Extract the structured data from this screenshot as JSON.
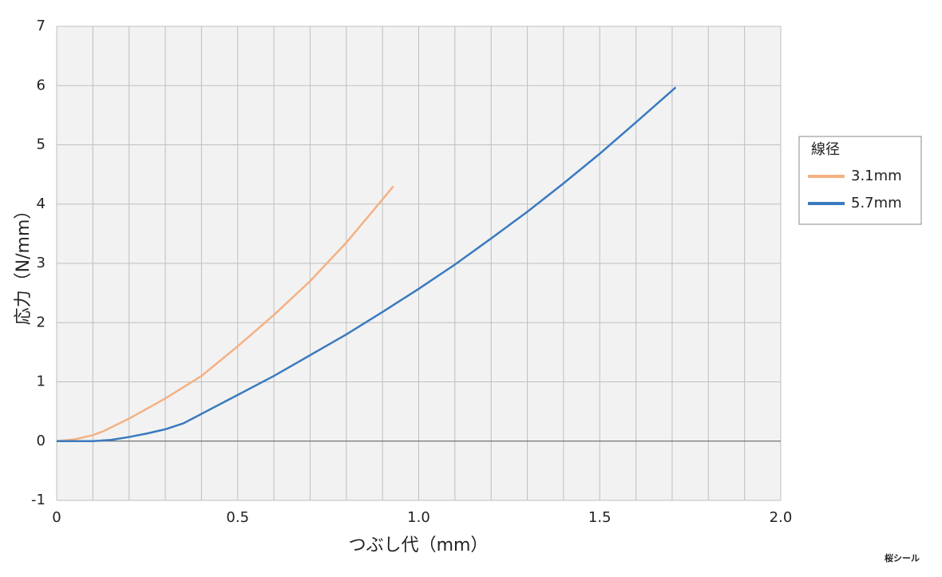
{
  "chart_data": {
    "type": "line",
    "xlabel": "つぶし代（mm）",
    "ylabel": "応力（N/mm）",
    "legend_title": "線径",
    "legend": "right",
    "grid": true,
    "xlim": [
      0,
      2.0
    ],
    "ylim": [
      -1,
      7
    ],
    "xticks": [
      0,
      0.5,
      {
        "value": 1.0,
        "label": "1.0"
      },
      1.5,
      {
        "value": 2.0,
        "label": "2.0"
      }
    ],
    "xminor": [
      0.1,
      0.2,
      0.3,
      0.4,
      0.6,
      0.7,
      0.8,
      0.9,
      1.1,
      1.2,
      1.3,
      1.4,
      1.6,
      1.7,
      1.8,
      1.9
    ],
    "yticks": [
      -1,
      0,
      1,
      2,
      3,
      4,
      5,
      6,
      7
    ],
    "series": [
      {
        "name": "3.1mm",
        "color": "#f4b183",
        "x": [
          0,
          0.05,
          0.1,
          0.13,
          0.2,
          0.3,
          0.4,
          0.5,
          0.6,
          0.7,
          0.8,
          0.9,
          0.93
        ],
        "values": [
          0,
          0.03,
          0.1,
          0.17,
          0.38,
          0.72,
          1.1,
          1.6,
          2.13,
          2.7,
          3.35,
          4.08,
          4.3
        ]
      },
      {
        "name": "5.7mm",
        "color": "#3a7abf",
        "x": [
          0,
          0.1,
          0.15,
          0.2,
          0.25,
          0.3,
          0.35,
          0.4,
          0.5,
          0.6,
          0.7,
          0.8,
          0.9,
          1.0,
          1.1,
          1.2,
          1.3,
          1.4,
          1.5,
          1.6,
          1.71
        ],
        "values": [
          0,
          0,
          0.02,
          0.07,
          0.13,
          0.2,
          0.3,
          0.46,
          0.78,
          1.1,
          1.45,
          1.8,
          2.18,
          2.57,
          2.98,
          3.42,
          3.87,
          4.35,
          4.85,
          5.38,
          5.97
        ]
      }
    ]
  },
  "logo": "桜シール"
}
